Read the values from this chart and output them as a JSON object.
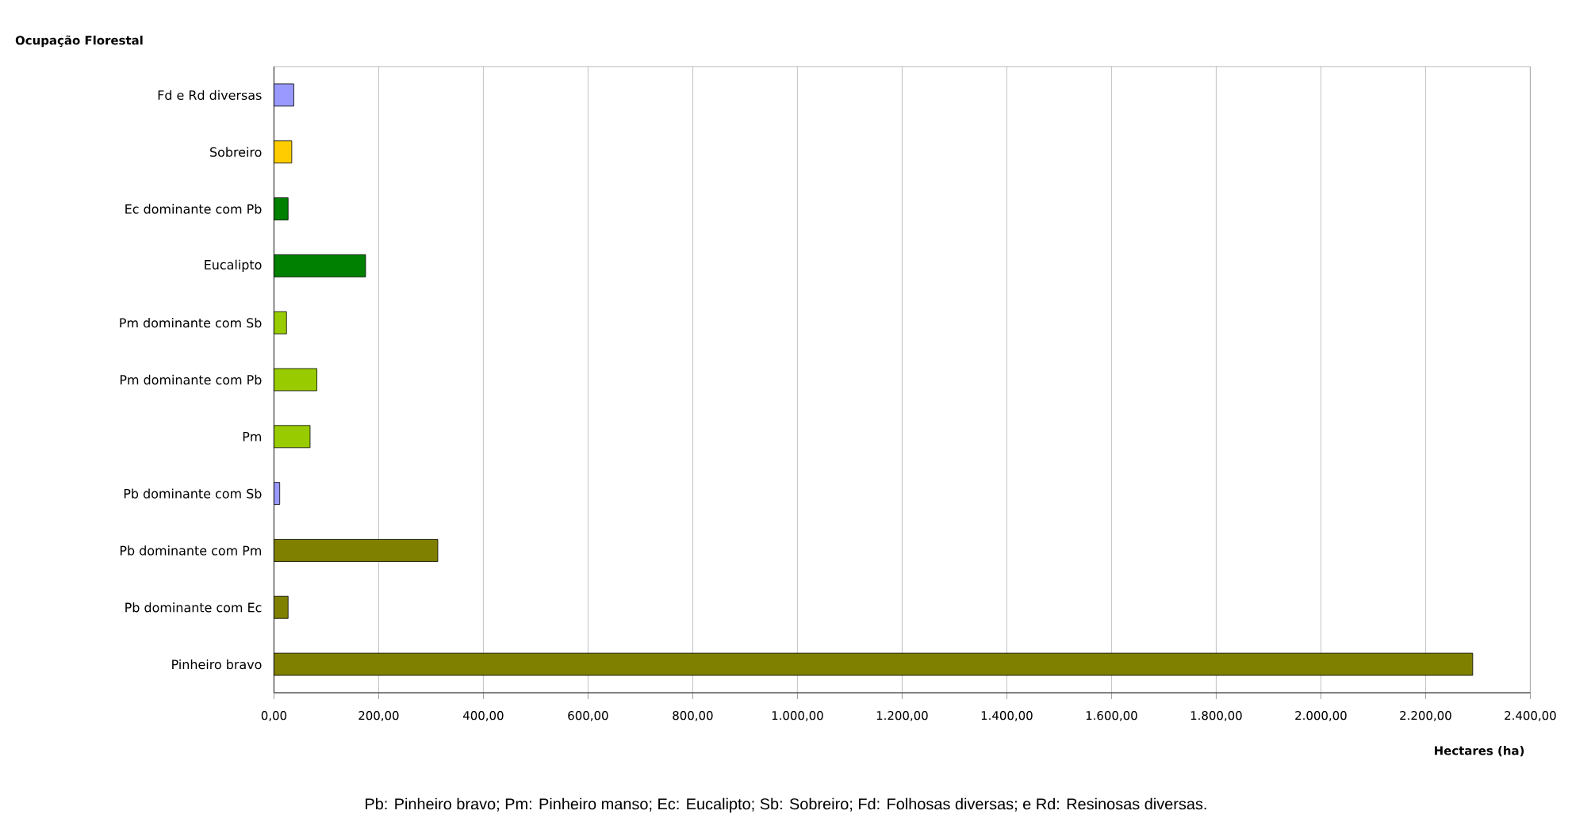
{
  "chart_data": {
    "type": "bar",
    "orientation": "horizontal",
    "title": "Ocupação Florestal",
    "xlabel": "Hectares (ha)",
    "categories": [
      "Fd e Rd diversas",
      "Sobreiro",
      "Ec dominante com Pb",
      "Eucalipto",
      "Pm dominante com Sb",
      "Pm dominante com Pb",
      "Pm",
      "Pb dominante com Sb",
      "Pb dominante com Pm",
      "Pb dominante com Ec",
      "Pinheiro bravo"
    ],
    "values": [
      38,
      34,
      27,
      175,
      24,
      82,
      69,
      11,
      313,
      27,
      2290
    ],
    "colors": [
      "#9999ff",
      "#ffcc00",
      "#008000",
      "#008000",
      "#99cc00",
      "#99cc00",
      "#99cc00",
      "#9999ff",
      "#808000",
      "#808000",
      "#808000"
    ],
    "xlim": [
      0,
      2400
    ],
    "xticks": [
      {
        "value": 0,
        "label": "0,00"
      },
      {
        "value": 200,
        "label": "200,00"
      },
      {
        "value": 400,
        "label": "400,00"
      },
      {
        "value": 600,
        "label": "600,00"
      },
      {
        "value": 800,
        "label": "800,00"
      },
      {
        "value": 1000,
        "label": "1.000,00"
      },
      {
        "value": 1200,
        "label": "1.200,00"
      },
      {
        "value": 1400,
        "label": "1.400,00"
      },
      {
        "value": 1600,
        "label": "1.600,00"
      },
      {
        "value": 1800,
        "label": "1.800,00"
      },
      {
        "value": 2000,
        "label": "2.000,00"
      },
      {
        "value": 2200,
        "label": "2.200,00"
      },
      {
        "value": 2400,
        "label": "2.400,00"
      }
    ],
    "grid": "x",
    "annotations": [
      "Pb: Pinheiro bravo; Pm: Pinheiro manso; Ec: Eucalipto; Sb: Sobreiro; Fd: Folhosas diversas; e Rd: Resinosas diversas."
    ]
  }
}
